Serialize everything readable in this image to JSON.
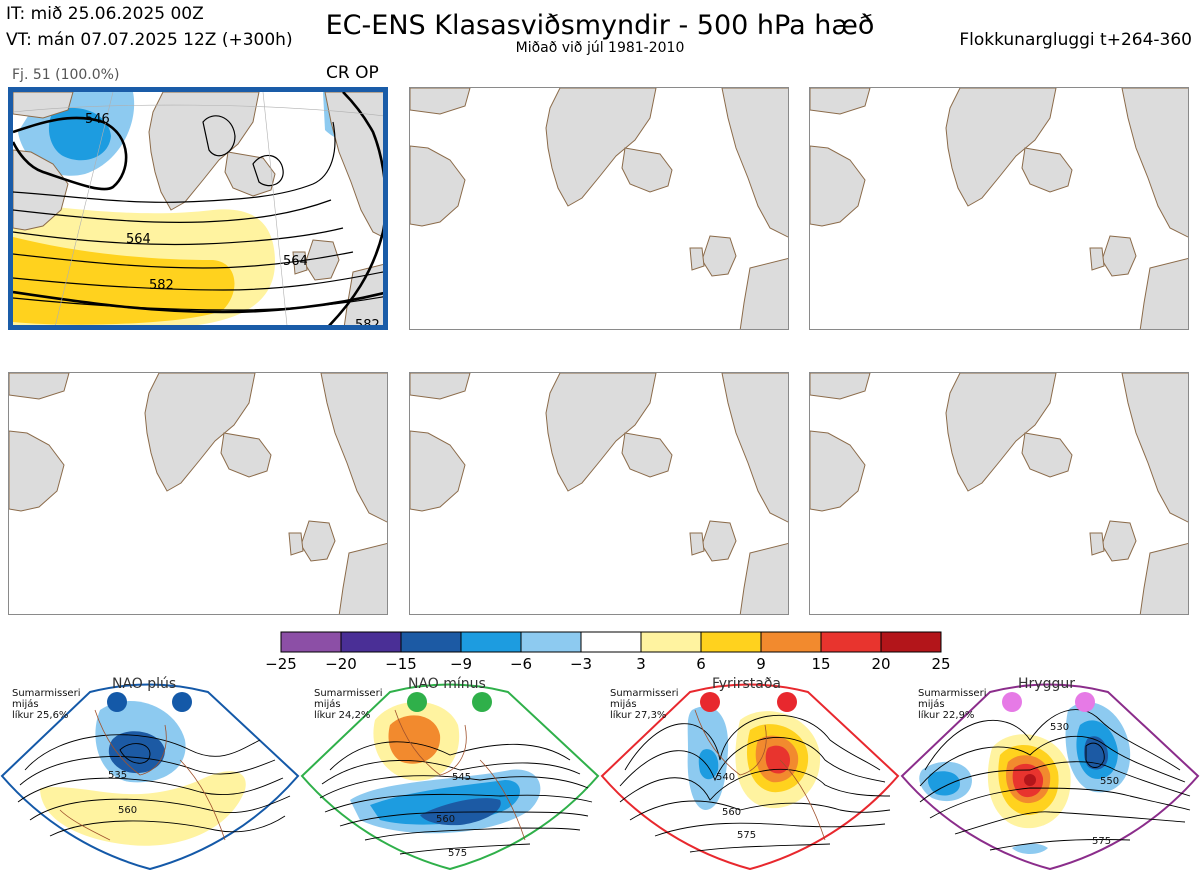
{
  "header": {
    "it": "IT: mið 25.06.2025 00Z",
    "vt": "VT: mán 07.07.2025 12Z  (+300h)",
    "title": "EC-ENS Klasasviðsmyndir - 500 hPa hæð",
    "subtitle": "Miðað við júl 1981-2010",
    "window": "Flokkunargluggi t+264-360"
  },
  "cluster_panel": {
    "members": "Fj. 51 (100.0%)",
    "tag": "CR OP",
    "contour_labels": [
      "546",
      "564",
      "564",
      "582",
      "582"
    ]
  },
  "colorbar": {
    "ticks": [
      "−25",
      "−20",
      "−15",
      "−9",
      "−6",
      "−3",
      "3",
      "6",
      "9",
      "15",
      "20",
      "25"
    ],
    "colors": [
      "#8c4fa6",
      "#4a2f96",
      "#1c5aa4",
      "#1d9ce0",
      "#8dcaf0",
      "#ffffff",
      "#fff3a0",
      "#ffd21e",
      "#f28a2e",
      "#e8342e",
      "#b3151a"
    ]
  },
  "regimes": [
    {
      "name": "NAO plús",
      "season": "Sumarmisseri",
      "kind": "mijás",
      "prob": "líkur 25,6%",
      "dot": "#1459a8",
      "border": "#1459a8",
      "labels": [
        "535",
        "560"
      ]
    },
    {
      "name": "NAO mínus",
      "season": "Sumarmisseri",
      "kind": "mijás",
      "prob": "líkur 24,2%",
      "dot": "#2fb04a",
      "border": "#2fb04a",
      "labels": [
        "545",
        "560",
        "575"
      ]
    },
    {
      "name": "Fyrirstaða",
      "season": "Sumarmisseri",
      "kind": "mijás",
      "prob": "líkur 27,3%",
      "dot": "#e8282e",
      "border": "#e8282e",
      "labels": [
        "540",
        "560",
        "575"
      ]
    },
    {
      "name": "Hryggur",
      "season": "Sumarmisseri",
      "kind": "mijás",
      "prob": "líkur 22,9%",
      "dot": "#e67ae6",
      "border": "#8b2d8b",
      "labels": [
        "530",
        "550",
        "575"
      ]
    }
  ]
}
